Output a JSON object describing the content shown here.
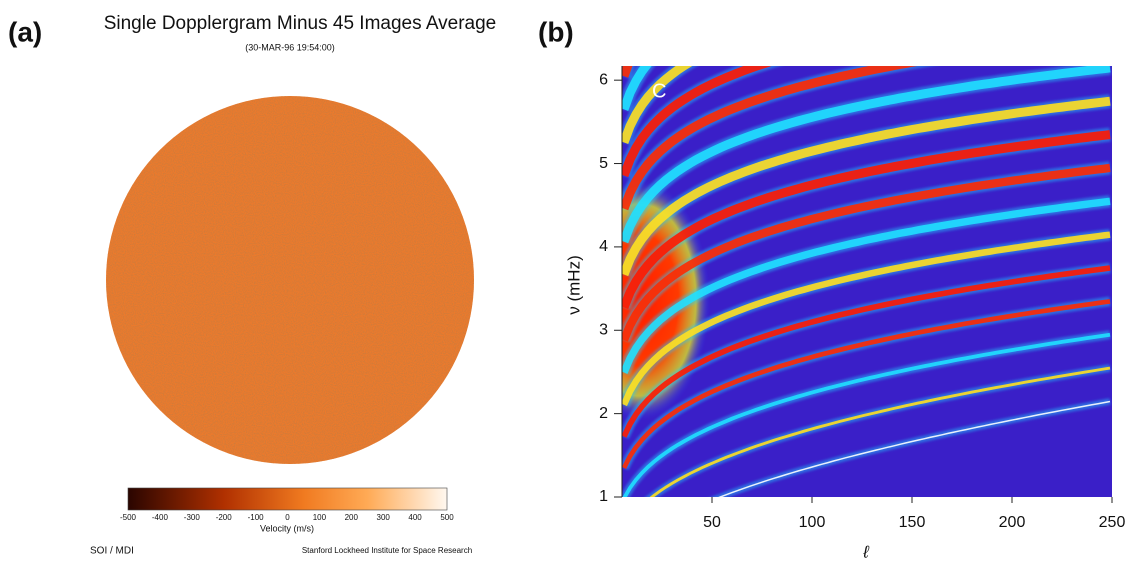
{
  "panel_a": {
    "label": "(a)",
    "title": "Single Dopplergram Minus 45 Images Average",
    "subtitle": "(30-MAR-96  19:54:00)",
    "colorbar": {
      "ticks": [
        -500,
        -400,
        -300,
        -200,
        -100,
        0,
        100,
        200,
        300,
        400,
        500
      ],
      "range": [
        -500,
        500
      ],
      "label": "Velocity (m/s)"
    },
    "footer_left": "SOI / MDI",
    "footer_right": "Stanford Lockheed Institute for Space Research"
  },
  "panel_b": {
    "label": "(b)",
    "inset_label": "C",
    "xlabel": "ℓ",
    "ylabel": "ν (mHz)",
    "xlim": [
      5,
      250
    ],
    "ylim": [
      1,
      6.17
    ],
    "xticks": [
      50,
      100,
      150,
      200,
      250
    ],
    "yticks": [
      1,
      2,
      3,
      4,
      5,
      6
    ]
  }
}
